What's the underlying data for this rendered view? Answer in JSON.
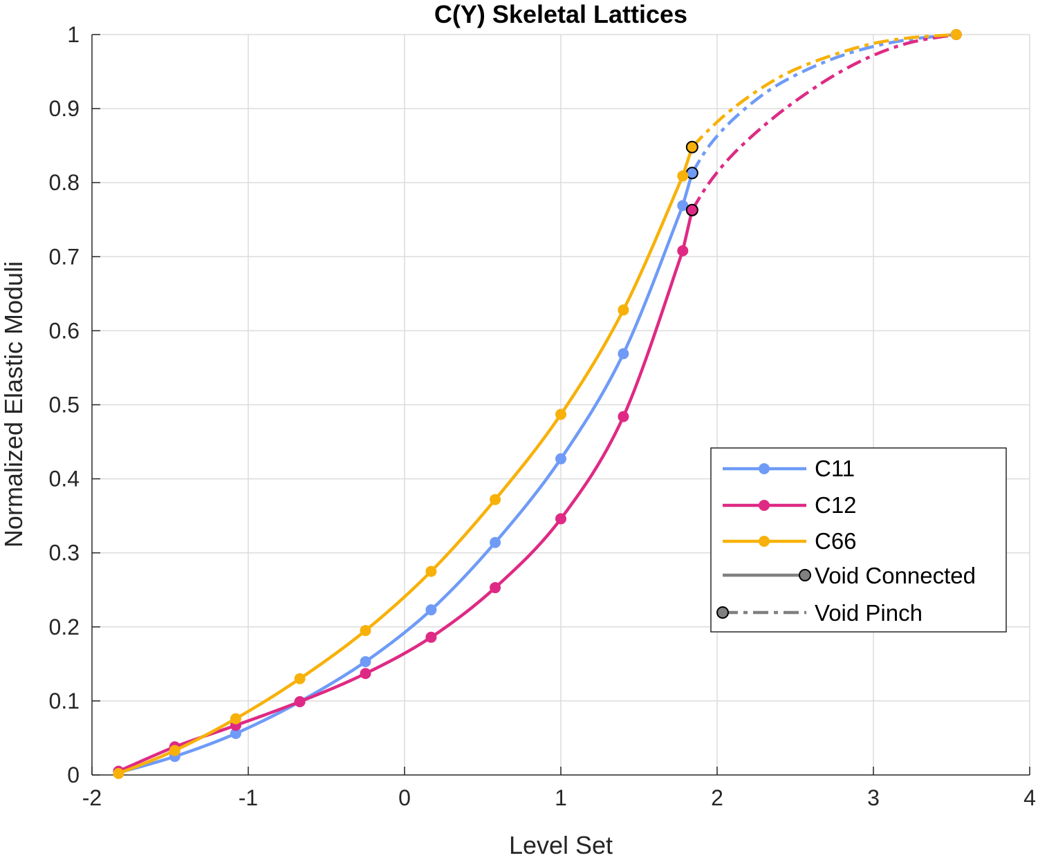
{
  "chart_data": {
    "type": "line",
    "title": "C(Y) Skeletal Lattices",
    "xlabel": "Level Set",
    "ylabel": "Normalized Elastic Moduli",
    "xlim": [
      -2,
      4
    ],
    "ylim": [
      0,
      1
    ],
    "xticks": [
      -2,
      -1,
      0,
      1,
      2,
      3,
      4
    ],
    "yticks": [
      0,
      0.1,
      0.2,
      0.3,
      0.4,
      0.5,
      0.6,
      0.7,
      0.8,
      0.9,
      1
    ],
    "grid": true,
    "legend_position": "lower-right",
    "series": [
      {
        "name": "C11",
        "color": "#6f9bf7",
        "connected": {
          "x": [
            -1.83,
            -1.47,
            -1.08,
            -0.67,
            -0.25,
            0.17,
            0.58,
            1.0,
            1.4,
            1.78
          ],
          "y": [
            0.003,
            0.025,
            0.056,
            0.099,
            0.153,
            0.223,
            0.314,
            0.427,
            0.569,
            0.769
          ]
        },
        "pinch_point": {
          "x": 1.84,
          "y": 0.813
        },
        "pinch": {
          "x": [
            1.84,
            1.95,
            2.1,
            2.3,
            2.5,
            2.75,
            3.0,
            3.25,
            3.53
          ],
          "y": [
            0.813,
            0.85,
            0.885,
            0.92,
            0.945,
            0.968,
            0.984,
            0.994,
            1.0
          ]
        }
      },
      {
        "name": "C12",
        "color": "#de2a84",
        "connected": {
          "x": [
            -1.83,
            -1.47,
            -1.08,
            -0.67,
            -0.25,
            0.17,
            0.58,
            1.0,
            1.4,
            1.78
          ],
          "y": [
            0.005,
            0.038,
            0.067,
            0.099,
            0.137,
            0.186,
            0.253,
            0.346,
            0.484,
            0.708
          ]
        },
        "pinch_point": {
          "x": 1.84,
          "y": 0.763
        },
        "pinch": {
          "x": [
            1.84,
            1.95,
            2.1,
            2.3,
            2.5,
            2.75,
            3.0,
            3.25,
            3.53
          ],
          "y": [
            0.763,
            0.8,
            0.838,
            0.877,
            0.91,
            0.945,
            0.972,
            0.99,
            1.0
          ]
        }
      },
      {
        "name": "C66",
        "color": "#f7b10a",
        "connected": {
          "x": [
            -1.83,
            -1.47,
            -1.08,
            -0.67,
            -0.25,
            0.17,
            0.58,
            1.0,
            1.4,
            1.78
          ],
          "y": [
            0.002,
            0.033,
            0.076,
            0.13,
            0.195,
            0.275,
            0.372,
            0.487,
            0.628,
            0.809
          ]
        },
        "pinch_point": {
          "x": 1.84,
          "y": 0.848
        },
        "pinch": {
          "x": [
            1.84,
            1.95,
            2.1,
            2.3,
            2.5,
            2.75,
            3.0,
            3.25,
            3.53
          ],
          "y": [
            0.848,
            0.872,
            0.9,
            0.93,
            0.953,
            0.973,
            0.988,
            0.996,
            1.0
          ]
        }
      }
    ],
    "legend": {
      "entries": [
        "C11",
        "C12",
        "C66",
        "Void Connected",
        "Void Pinch"
      ],
      "style_color": "#808080"
    }
  }
}
